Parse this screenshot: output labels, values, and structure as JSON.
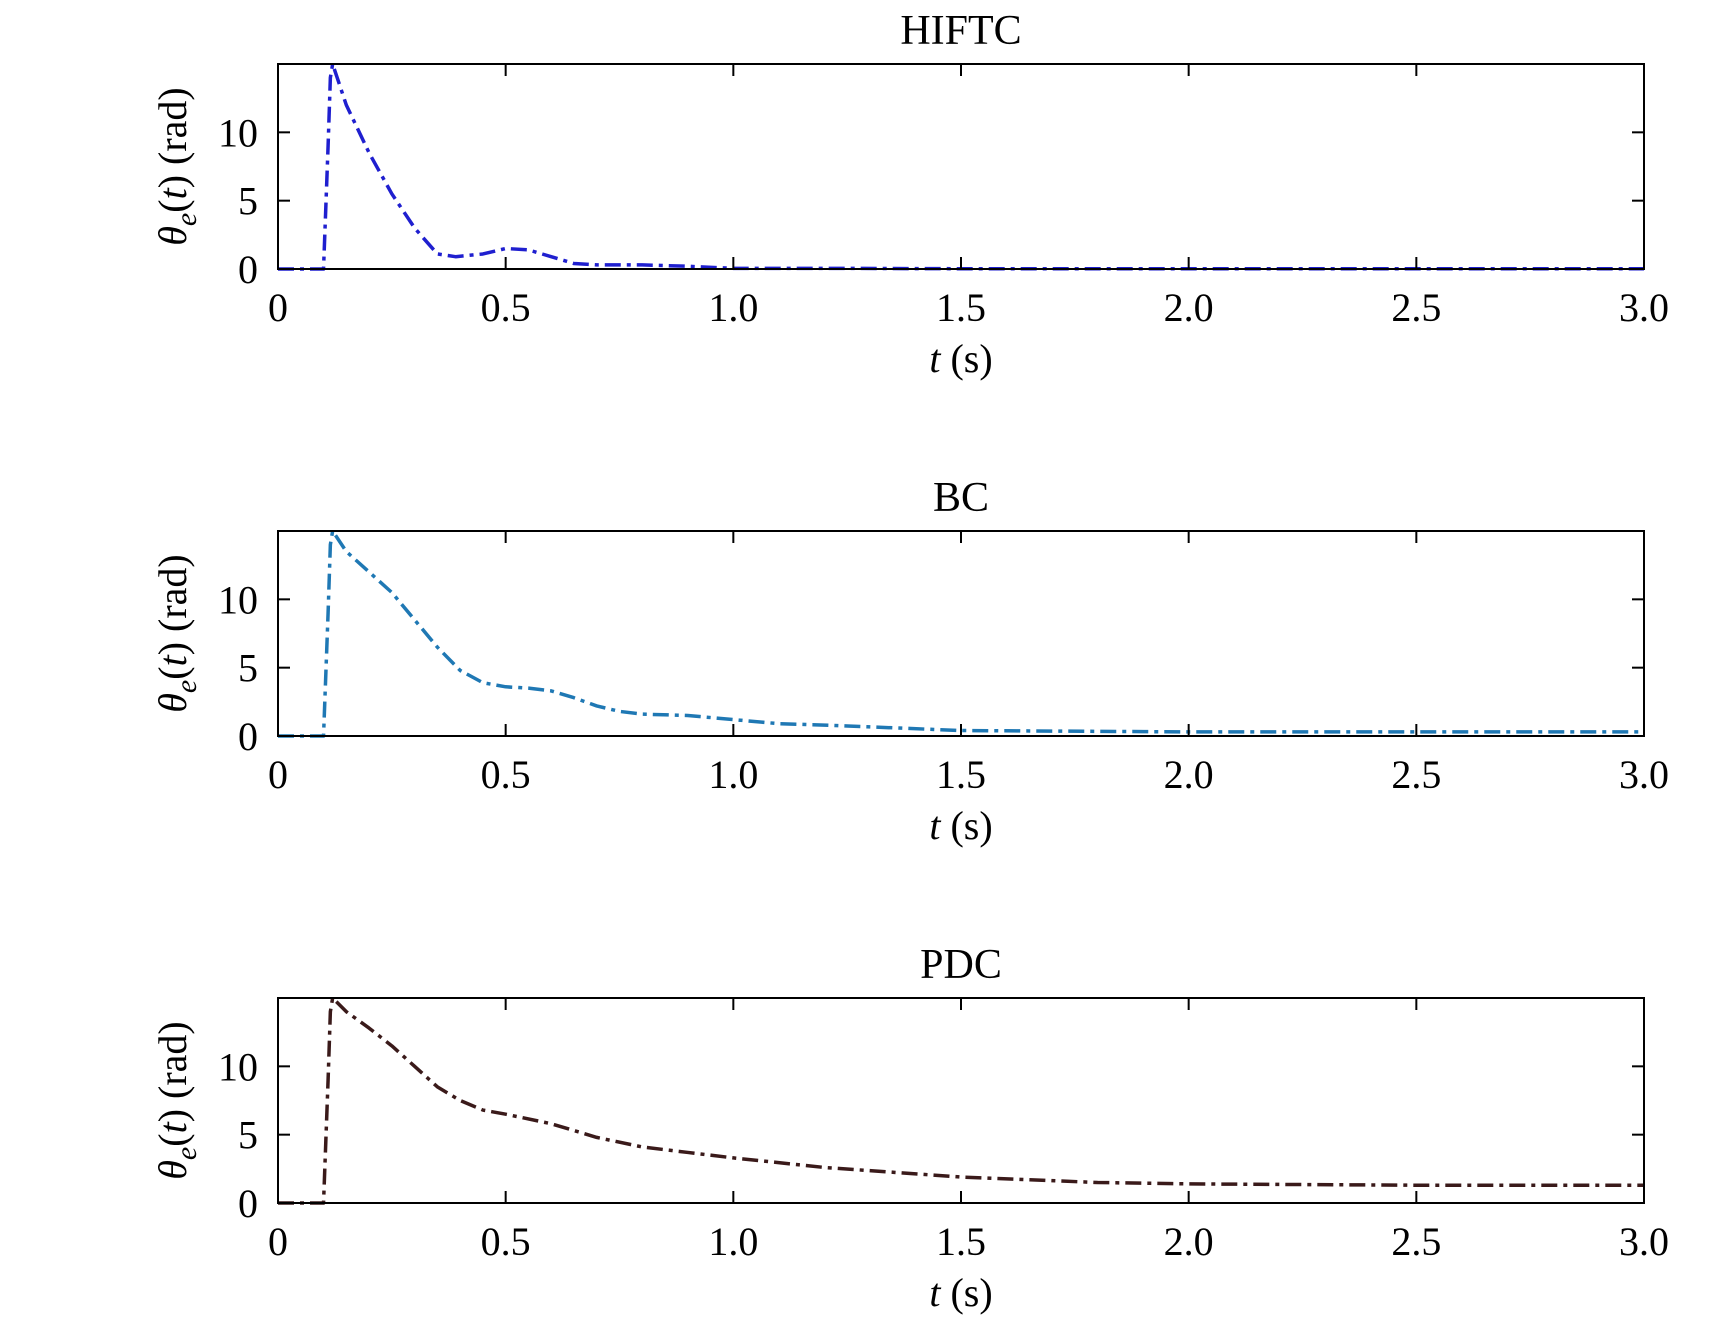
{
  "chart_data": [
    {
      "type": "line",
      "title": "HIFTC",
      "xlabel": "t (s)",
      "ylabel": "θe(t) (rad)",
      "xlim": [
        0,
        3.0
      ],
      "ylim": [
        0,
        15
      ],
      "xticks": [
        "0",
        "0.5",
        "1.0",
        "1.5",
        "2.0",
        "2.5",
        "3.0"
      ],
      "yticks": [
        "0",
        "5",
        "10"
      ],
      "grid": false,
      "line_style": "dash-dot",
      "series": [
        {
          "color": "#1f1fcf",
          "x": [
            0,
            0.1,
            0.11,
            0.115,
            0.12,
            0.13,
            0.15,
            0.2,
            0.25,
            0.3,
            0.35,
            0.39,
            0.42,
            0.45,
            0.5,
            0.55,
            0.6,
            0.65,
            0.7,
            0.8,
            0.9,
            1.0,
            1.2,
            1.5,
            2.0,
            2.5,
            3.0
          ],
          "y": [
            0,
            0,
            9,
            14,
            15,
            14,
            12,
            8.5,
            5.5,
            3.0,
            1.1,
            0.9,
            1.0,
            1.1,
            1.5,
            1.4,
            0.9,
            0.4,
            0.3,
            0.3,
            0.2,
            0.05,
            0.05,
            0.02,
            0.02,
            0.02,
            0.02
          ]
        }
      ]
    },
    {
      "type": "line",
      "title": "BC",
      "xlabel": "t (s)",
      "ylabel": "θe(t) (rad)",
      "xlim": [
        0,
        3.0
      ],
      "ylim": [
        0,
        15
      ],
      "xticks": [
        "0",
        "0.5",
        "1.0",
        "1.5",
        "2.0",
        "2.5",
        "3.0"
      ],
      "yticks": [
        "0",
        "5",
        "10"
      ],
      "grid": false,
      "line_style": "dash-dot",
      "series": [
        {
          "color": "#1f78b4",
          "x": [
            0,
            0.1,
            0.11,
            0.115,
            0.12,
            0.15,
            0.2,
            0.25,
            0.3,
            0.35,
            0.4,
            0.45,
            0.5,
            0.55,
            0.6,
            0.65,
            0.7,
            0.75,
            0.8,
            0.9,
            1.0,
            1.1,
            1.2,
            1.5,
            2.0,
            2.5,
            3.0
          ],
          "y": [
            0,
            0,
            9,
            14,
            15,
            13.5,
            12,
            10.5,
            8.5,
            6.5,
            4.8,
            3.9,
            3.6,
            3.5,
            3.3,
            2.8,
            2.2,
            1.8,
            1.6,
            1.5,
            1.2,
            0.9,
            0.8,
            0.4,
            0.3,
            0.3,
            0.3
          ]
        }
      ]
    },
    {
      "type": "line",
      "title": "PDC",
      "xlabel": "t (s)",
      "ylabel": "θe(t) (rad)",
      "xlim": [
        0,
        3.0
      ],
      "ylim": [
        0,
        15
      ],
      "xticks": [
        "0",
        "0.5",
        "1.0",
        "1.5",
        "2.0",
        "2.5",
        "3.0"
      ],
      "yticks": [
        "0",
        "5",
        "10"
      ],
      "grid": false,
      "line_style": "dash-dot",
      "series": [
        {
          "color": "#3a1a1a",
          "x": [
            0,
            0.1,
            0.11,
            0.115,
            0.12,
            0.15,
            0.2,
            0.25,
            0.3,
            0.35,
            0.4,
            0.45,
            0.5,
            0.6,
            0.7,
            0.8,
            0.9,
            1.0,
            1.2,
            1.5,
            1.8,
            2.0,
            2.5,
            3.0
          ],
          "y": [
            0,
            0,
            9,
            14,
            15,
            14,
            12.8,
            11.5,
            10,
            8.5,
            7.5,
            6.8,
            6.5,
            5.8,
            4.8,
            4.1,
            3.7,
            3.3,
            2.6,
            1.9,
            1.5,
            1.4,
            1.3,
            1.3
          ]
        }
      ]
    }
  ]
}
